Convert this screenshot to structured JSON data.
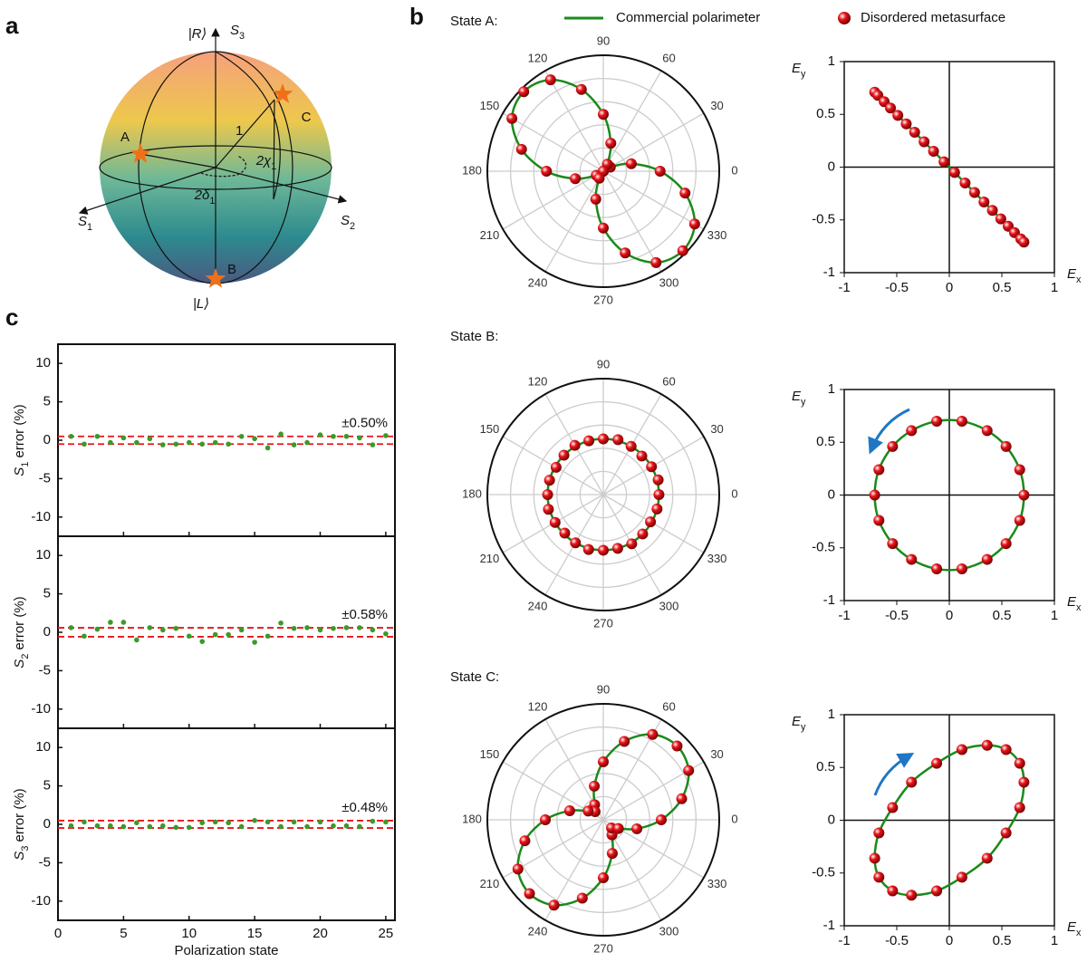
{
  "panel_labels": [
    "a",
    "b",
    "c"
  ],
  "sphere": {
    "top": "|R⟩",
    "bottom": "|L⟩",
    "axes": [
      [
        "S",
        "3"
      ],
      [
        "S",
        "1"
      ],
      [
        "S",
        "2"
      ]
    ],
    "points": [
      "A",
      "B",
      "C"
    ],
    "radius": "1",
    "angles": [
      [
        "2χ",
        "1"
      ],
      [
        "2δ",
        "1"
      ]
    ]
  },
  "chart_data": [
    {
      "type": "polar",
      "title": "State A:",
      "theta": [
        0,
        15,
        30,
        45,
        60,
        75,
        90,
        105,
        120,
        135,
        150,
        165,
        180,
        195,
        210,
        225,
        240,
        255,
        270,
        285,
        300,
        315,
        330,
        345
      ],
      "rlim": [
        0,
        1
      ],
      "rgrid": [
        0.2,
        0.4,
        0.6,
        0.8
      ],
      "angle_ticks": [
        0,
        30,
        60,
        90,
        120,
        150,
        180,
        210,
        240,
        270,
        300,
        330
      ],
      "series": [
        {
          "name": "Commercial polarimeter",
          "style": "line",
          "color": "#1a8a1a",
          "values": [
            0.49,
            0.25,
            0.07,
            0,
            0.07,
            0.25,
            0.49,
            0.73,
            0.91,
            0.97,
            0.91,
            0.73,
            0.49,
            0.25,
            0.07,
            0,
            0.07,
            0.25,
            0.49,
            0.73,
            0.91,
            0.97,
            0.91,
            0.73
          ]
        },
        {
          "name": "Disordered metasurface",
          "style": "marker",
          "color": "#e8141a",
          "values": [
            0.49,
            0.25,
            0.07,
            0,
            0.07,
            0.25,
            0.49,
            0.73,
            0.91,
            0.97,
            0.91,
            0.73,
            0.49,
            0.25,
            0.07,
            0,
            0.07,
            0.25,
            0.49,
            0.73,
            0.91,
            0.97,
            0.91,
            0.73
          ]
        }
      ]
    },
    {
      "type": "polar",
      "title": "State B:",
      "theta": [
        0,
        15,
        30,
        45,
        60,
        75,
        90,
        105,
        120,
        135,
        150,
        165,
        180,
        195,
        210,
        225,
        240,
        255,
        270,
        285,
        300,
        315,
        330,
        345
      ],
      "rlim": [
        0,
        1
      ],
      "rgrid": [
        0.2,
        0.4,
        0.6,
        0.8
      ],
      "angle_ticks": [
        0,
        30,
        60,
        90,
        120,
        150,
        180,
        210,
        240,
        270,
        300,
        330
      ],
      "series": [
        {
          "style": "line",
          "color": "#1a8a1a",
          "values": [
            0.48,
            0.48,
            0.48,
            0.48,
            0.48,
            0.48,
            0.48,
            0.48,
            0.48,
            0.48,
            0.48,
            0.48,
            0.48,
            0.48,
            0.48,
            0.48,
            0.48,
            0.48,
            0.48,
            0.48,
            0.48,
            0.48,
            0.48,
            0.48
          ]
        },
        {
          "style": "marker",
          "color": "#e8141a",
          "values": [
            0.48,
            0.49,
            0.48,
            0.47,
            0.48,
            0.49,
            0.48,
            0.48,
            0.49,
            0.48,
            0.47,
            0.48,
            0.48,
            0.49,
            0.48,
            0.47,
            0.48,
            0.49,
            0.48,
            0.48,
            0.49,
            0.48,
            0.47,
            0.48
          ]
        }
      ]
    },
    {
      "type": "polar",
      "title": "State C:",
      "theta": [
        0,
        15,
        30,
        45,
        60,
        75,
        90,
        105,
        120,
        135,
        150,
        165,
        180,
        195,
        210,
        225,
        240,
        255,
        270,
        285,
        300,
        315,
        330,
        345
      ],
      "rlim": [
        0,
        1
      ],
      "rgrid": [
        0.2,
        0.4,
        0.6,
        0.8
      ],
      "angle_ticks": [
        0,
        30,
        60,
        90,
        120,
        150,
        180,
        210,
        240,
        270,
        300,
        330
      ],
      "series": [
        {
          "style": "line",
          "color": "#1a8a1a",
          "values": [
            0.5,
            0.7,
            0.85,
            0.9,
            0.85,
            0.7,
            0.5,
            0.3,
            0.15,
            0.1,
            0.15,
            0.3,
            0.5,
            0.7,
            0.85,
            0.9,
            0.85,
            0.7,
            0.5,
            0.3,
            0.15,
            0.1,
            0.15,
            0.3
          ]
        },
        {
          "style": "marker",
          "color": "#e8141a",
          "values": [
            0.5,
            0.7,
            0.85,
            0.9,
            0.85,
            0.7,
            0.5,
            0.3,
            0.15,
            0.1,
            0.15,
            0.3,
            0.5,
            0.7,
            0.85,
            0.9,
            0.85,
            0.7,
            0.5,
            0.3,
            0.15,
            0.1,
            0.15,
            0.3
          ]
        }
      ]
    },
    {
      "type": "xy",
      "xlabel": [
        "E",
        "x"
      ],
      "ylabel": [
        "E",
        "y"
      ],
      "xlim": [
        -1,
        1
      ],
      "ylim": [
        -1,
        1
      ],
      "xticks": [
        -1,
        -0.5,
        0,
        0.5,
        1
      ],
      "yticks": [
        -1,
        -0.5,
        0,
        0.5,
        1
      ],
      "closed": false,
      "series": [
        {
          "style": "line",
          "color": "#1a8a1a",
          "x": [
            -0.71,
            0.71
          ],
          "y": [
            0.71,
            -0.71
          ]
        },
        {
          "style": "marker",
          "color": "#e8141a",
          "x": [
            -0.71,
            -0.68,
            -0.62,
            -0.56,
            -0.49,
            -0.41,
            -0.33,
            -0.24,
            -0.15,
            -0.05,
            0.05,
            0.15,
            0.24,
            0.33,
            0.41,
            0.49,
            0.56,
            0.62,
            0.68,
            0.71
          ],
          "y": [
            0.71,
            0.68,
            0.62,
            0.56,
            0.49,
            0.41,
            0.33,
            0.24,
            0.15,
            0.05,
            -0.05,
            -0.15,
            -0.24,
            -0.33,
            -0.41,
            -0.49,
            -0.56,
            -0.62,
            -0.68,
            -0.71
          ]
        }
      ]
    },
    {
      "type": "xy",
      "xlabel": [
        "E",
        "x"
      ],
      "ylabel": [
        "E",
        "y"
      ],
      "xlim": [
        -1,
        1
      ],
      "ylim": [
        -1,
        1
      ],
      "xticks": [
        -1,
        -0.5,
        0,
        0.5,
        1
      ],
      "yticks": [
        -1,
        -0.5,
        0,
        0.5,
        1
      ],
      "closed": true,
      "series": [
        {
          "style": "line",
          "color": "#1a8a1a",
          "x": [
            0.71,
            0.67,
            0.54,
            0.36,
            0.12,
            -0.12,
            -0.36,
            -0.54,
            -0.67,
            -0.71,
            -0.67,
            -0.54,
            -0.36,
            -0.12,
            0.12,
            0.36,
            0.54,
            0.67
          ],
          "y": [
            0,
            0.24,
            0.46,
            0.61,
            0.7,
            0.7,
            0.61,
            0.46,
            0.24,
            0,
            -0.24,
            -0.46,
            -0.61,
            -0.7,
            -0.7,
            -0.61,
            -0.46,
            -0.24
          ]
        },
        {
          "style": "marker",
          "color": "#e8141a",
          "x": [
            0.71,
            0.67,
            0.54,
            0.36,
            0.12,
            -0.12,
            -0.36,
            -0.54,
            -0.67,
            -0.71,
            -0.67,
            -0.54,
            -0.36,
            -0.12,
            0.12,
            0.36,
            0.54,
            0.67
          ],
          "y": [
            0,
            0.24,
            0.46,
            0.61,
            0.7,
            0.7,
            0.61,
            0.46,
            0.24,
            0,
            -0.24,
            -0.46,
            -0.61,
            -0.7,
            -0.7,
            -0.61,
            -0.46,
            -0.24
          ]
        }
      ]
    },
    {
      "type": "xy",
      "xlabel": [
        "E",
        "x"
      ],
      "ylabel": [
        "E",
        "y"
      ],
      "xlim": [
        -1,
        1
      ],
      "ylim": [
        -1,
        1
      ],
      "xticks": [
        -1,
        -0.5,
        0,
        0.5,
        1
      ],
      "yticks": [
        -1,
        -0.5,
        0,
        0.5,
        1
      ],
      "closed": true,
      "series": [
        {
          "style": "line",
          "color": "#1a8a1a",
          "x": [
            0.71,
            0.67,
            0.54,
            0.36,
            0.12,
            -0.12,
            -0.36,
            -0.54,
            -0.67,
            -0.71,
            -0.67,
            -0.54,
            -0.36,
            -0.12,
            0.12,
            0.36,
            0.54,
            0.67
          ],
          "y": [
            0.36,
            0.54,
            0.67,
            0.71,
            0.67,
            0.54,
            0.36,
            0.12,
            -0.12,
            -0.36,
            -0.54,
            -0.67,
            -0.71,
            -0.67,
            -0.54,
            -0.36,
            -0.12,
            0.12
          ]
        },
        {
          "style": "marker",
          "color": "#e8141a",
          "x": [
            0.71,
            0.67,
            0.54,
            0.36,
            0.12,
            -0.12,
            -0.36,
            -0.54,
            -0.67,
            -0.71,
            -0.67,
            -0.54,
            -0.36,
            -0.12,
            0.12,
            0.36,
            0.54,
            0.67
          ],
          "y": [
            0.36,
            0.54,
            0.67,
            0.71,
            0.67,
            0.54,
            0.36,
            0.12,
            -0.12,
            -0.36,
            -0.54,
            -0.67,
            -0.71,
            -0.67,
            -0.54,
            -0.36,
            -0.12,
            0.12
          ]
        }
      ]
    },
    {
      "type": "scatter",
      "ylabel": [
        "S",
        "1",
        " error (%)"
      ],
      "x": [
        1,
        2,
        3,
        4,
        5,
        6,
        7,
        8,
        9,
        10,
        11,
        12,
        13,
        14,
        15,
        16,
        17,
        18,
        19,
        20,
        21,
        22,
        23,
        24,
        25
      ],
      "values": [
        0.5,
        -0.5,
        0.5,
        -0.3,
        0.3,
        -0.3,
        0.2,
        -0.6,
        -0.5,
        -0.3,
        -0.5,
        -0.3,
        -0.5,
        0.5,
        0.2,
        -1.0,
        0.8,
        -0.6,
        -0.3,
        0.7,
        0.5,
        0.5,
        0.3,
        -0.6,
        0.6
      ],
      "color": "#3a9a2a",
      "xlim": [
        0,
        25.7
      ],
      "ylim": [
        -12.5,
        12.5
      ],
      "xticks": [
        0,
        5,
        10,
        15,
        20,
        25
      ],
      "yticks": [
        -10,
        -5,
        0,
        5,
        10
      ],
      "show_xtick_labels": false,
      "bounds": [
        0.5,
        -0.5
      ],
      "bound_color": "#e8141a",
      "bound_label": "±0.50%"
    },
    {
      "type": "scatter",
      "ylabel": [
        "S",
        "2",
        " error (%)"
      ],
      "x": [
        1,
        2,
        3,
        4,
        5,
        6,
        7,
        8,
        9,
        10,
        11,
        12,
        13,
        14,
        15,
        16,
        17,
        18,
        19,
        20,
        21,
        22,
        23,
        24,
        25
      ],
      "values": [
        0.6,
        -0.5,
        0.4,
        1.3,
        1.3,
        -1.0,
        0.6,
        0.3,
        0.5,
        -0.5,
        -1.2,
        -0.3,
        -0.3,
        0.3,
        -1.3,
        -0.5,
        1.2,
        0.5,
        0.6,
        0.3,
        0.5,
        0.6,
        0.6,
        0.3,
        -0.2
      ],
      "color": "#3a9a2a",
      "xlim": [
        0,
        25.7
      ],
      "ylim": [
        -12.5,
        12.5
      ],
      "xticks": [
        0,
        5,
        10,
        15,
        20,
        25
      ],
      "yticks": [
        -10,
        -5,
        0,
        5,
        10
      ],
      "show_xtick_labels": false,
      "bounds": [
        0.58,
        -0.58
      ],
      "bound_color": "#e8141a",
      "bound_label": "±0.58%"
    },
    {
      "type": "scatter",
      "ylabel": [
        "S",
        "3",
        " error (%)"
      ],
      "xlabel": "Polarization state",
      "x": [
        1,
        2,
        3,
        4,
        5,
        6,
        7,
        8,
        9,
        10,
        11,
        12,
        13,
        14,
        15,
        16,
        17,
        18,
        19,
        20,
        21,
        22,
        23,
        24,
        25
      ],
      "values": [
        -0.2,
        0.3,
        -0.2,
        -0.2,
        -0.3,
        0.2,
        -0.3,
        -0.2,
        -0.4,
        -0.4,
        0.2,
        0.3,
        0.2,
        -0.3,
        0.5,
        0.3,
        -0.3,
        0.3,
        -0.3,
        0.3,
        -0.2,
        -0.2,
        -0.3,
        0.4,
        0.3
      ],
      "color": "#3a9a2a",
      "xlim": [
        0,
        25.7
      ],
      "ylim": [
        -12.5,
        12.5
      ],
      "xticks": [
        0,
        5,
        10,
        15,
        20,
        25
      ],
      "yticks": [
        -10,
        -5,
        0,
        5,
        10
      ],
      "show_xtick_labels": true,
      "bounds": [
        0.48,
        -0.48
      ],
      "bound_color": "#e8141a",
      "bound_label": "±0.48%"
    }
  ]
}
